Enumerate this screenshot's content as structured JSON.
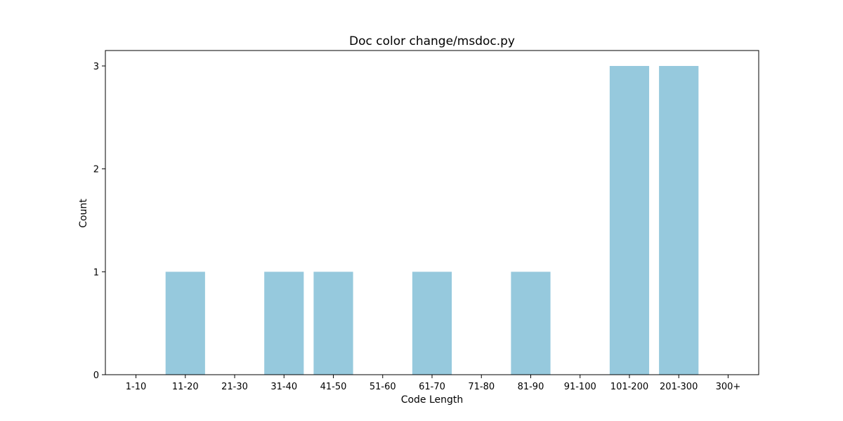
{
  "chart_data": {
    "type": "bar",
    "title": "Doc color change/msdoc.py",
    "xlabel": "Code Length",
    "ylabel": "Count",
    "categories": [
      "1-10",
      "11-20",
      "21-30",
      "31-40",
      "41-50",
      "51-60",
      "61-70",
      "71-80",
      "81-90",
      "91-100",
      "101-200",
      "201-300",
      "300+"
    ],
    "values": [
      0,
      1,
      0,
      1,
      1,
      0,
      1,
      0,
      1,
      0,
      3,
      3,
      0
    ],
    "ylim": [
      0,
      3.15
    ],
    "yticks": [
      0,
      1,
      2,
      3
    ],
    "grid": false,
    "bar_color": "#96c9dd"
  }
}
